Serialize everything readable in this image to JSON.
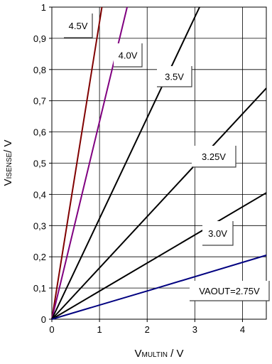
{
  "chart_data": {
    "type": "line",
    "xlabel": {
      "main": "V",
      "sub": "MULTIN",
      "suffix": " / V"
    },
    "ylabel": {
      "main": "V",
      "sub": "ISENSE",
      "suffix": "/ V"
    },
    "xlim": [
      0,
      4.5
    ],
    "ylim": [
      0,
      1
    ],
    "x_ticks": [
      {
        "value": 0,
        "label": "0"
      },
      {
        "value": 1,
        "label": "1"
      },
      {
        "value": 2,
        "label": "2"
      },
      {
        "value": 3,
        "label": "3"
      },
      {
        "value": 4,
        "label": "4"
      }
    ],
    "y_ticks": [
      {
        "value": 0,
        "label": "0"
      },
      {
        "value": 0.1,
        "label": "0,1"
      },
      {
        "value": 0.2,
        "label": "0,2"
      },
      {
        "value": 0.3,
        "label": "0,3"
      },
      {
        "value": 0.4,
        "label": "0,4"
      },
      {
        "value": 0.5,
        "label": "0,5"
      },
      {
        "value": 0.6,
        "label": "0,6"
      },
      {
        "value": 0.7,
        "label": "0,7"
      },
      {
        "value": 0.8,
        "label": "0,8"
      },
      {
        "value": 0.9,
        "label": "0,9"
      },
      {
        "value": 1,
        "label": "1"
      }
    ],
    "grid": true,
    "series": [
      {
        "name": "4.5V",
        "color": "#800000",
        "points": [
          [
            0,
            0
          ],
          [
            1.05,
            1.0
          ]
        ]
      },
      {
        "name": "4.0V",
        "color": "#800080",
        "points": [
          [
            0,
            0
          ],
          [
            1.58,
            1.0
          ]
        ]
      },
      {
        "name": "3.5V",
        "color": "#000000",
        "points": [
          [
            0,
            0
          ],
          [
            3.1,
            1.0
          ]
        ]
      },
      {
        "name": "3.25V",
        "color": "#000000",
        "points": [
          [
            0,
            0
          ],
          [
            4.5,
            0.74
          ]
        ]
      },
      {
        "name": "3.0V",
        "color": "#000000",
        "points": [
          [
            0,
            0
          ],
          [
            4.5,
            0.405
          ]
        ]
      },
      {
        "name": "VAOUT=2.75V",
        "color": "#000080",
        "points": [
          [
            0,
            0
          ],
          [
            2.1,
            0.095
          ],
          [
            4.5,
            0.205
          ]
        ]
      }
    ]
  }
}
